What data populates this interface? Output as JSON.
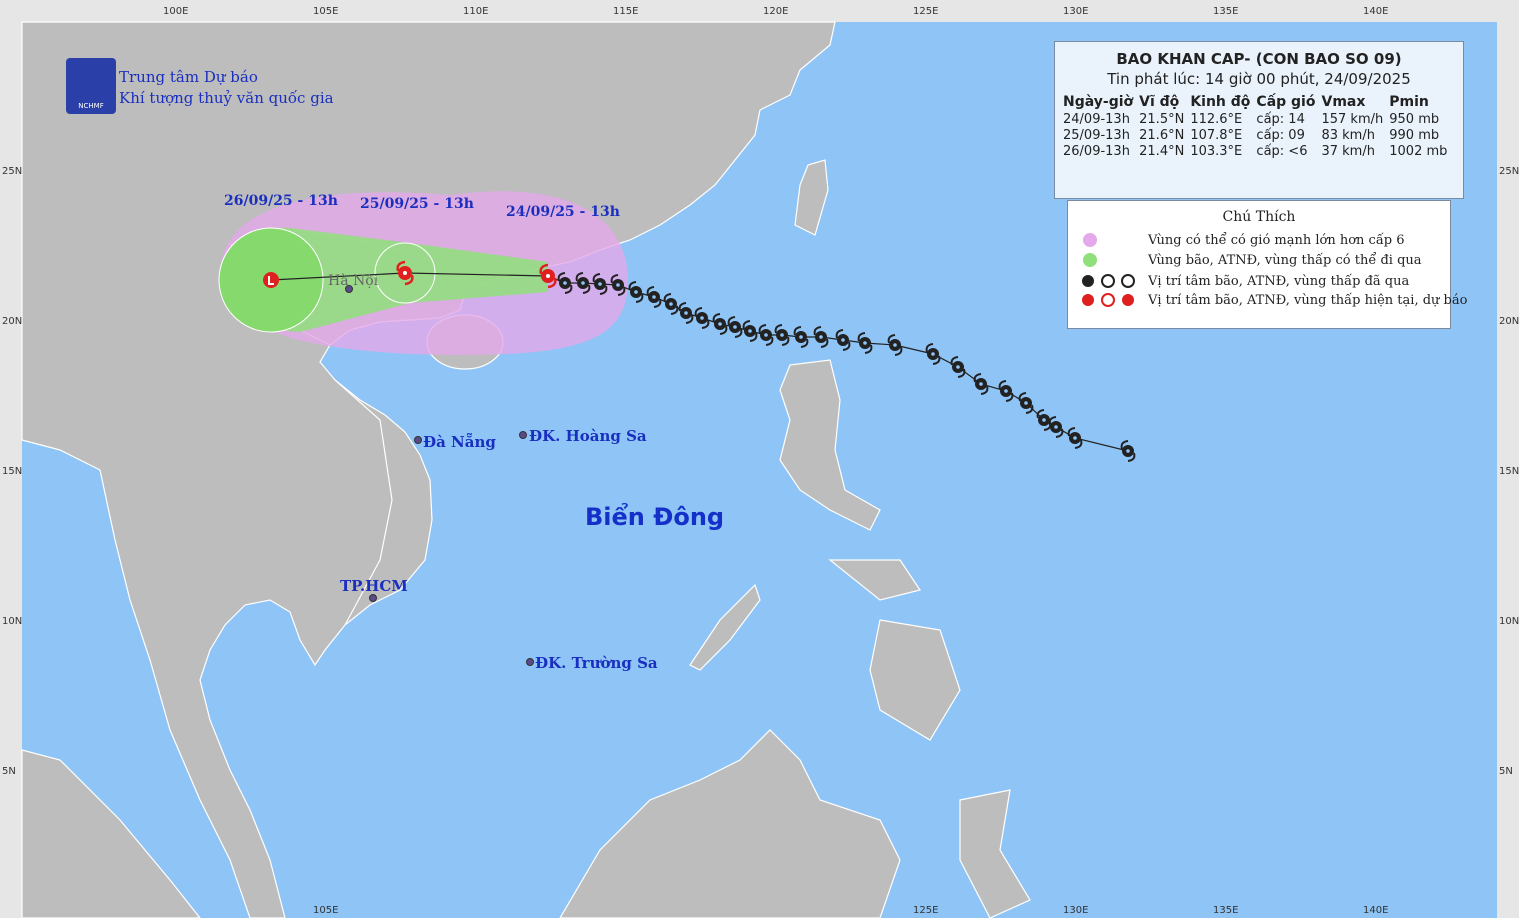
{
  "logo": {
    "abbr": "NCHMF",
    "line1": "Trung tâm Dự báo",
    "line2": "Khí tượng thuỷ văn quốc gia"
  },
  "axes": {
    "top": [
      "100E",
      "105E",
      "110E",
      "115E",
      "120E",
      "125E",
      "130E",
      "135E",
      "140E"
    ],
    "bottom": [
      "105E",
      "125E",
      "130E",
      "135E",
      "140E"
    ],
    "left": [
      "25N",
      "20N",
      "15N",
      "10N",
      "5N"
    ],
    "right": [
      "25N",
      "20N",
      "15N",
      "10N",
      "5N"
    ]
  },
  "forecast_labels": [
    "26/09/25 - 13h",
    "25/09/25 - 13h",
    "24/09/25 - 13h"
  ],
  "places": {
    "hanoi": "Hà Nội",
    "danang": "Đà Nẵng",
    "hoangsa": "ĐK. Hoàng Sa",
    "hcm": "TP.HCM",
    "truongsa": "ĐK. Trường Sa",
    "sea": "Biển Đông"
  },
  "info": {
    "title": "BAO KHAN CAP- (CON BAO SO 09)",
    "issued": "Tin phát lúc: 14 giờ 00 phút, 24/09/2025",
    "headers": [
      "Ngày-giờ",
      "Vĩ độ",
      "Kinh độ",
      "Cấp gió",
      "Vmax",
      "Pmin"
    ],
    "rows": [
      [
        "24/09-13h",
        "21.5°N",
        "112.6°E",
        "cấp: 14",
        "157 km/h",
        "950 mb"
      ],
      [
        "25/09-13h",
        "21.6°N",
        "107.8°E",
        "cấp: 09",
        "83 km/h",
        "990 mb"
      ],
      [
        "26/09-13h",
        "21.4°N",
        "103.3°E",
        "cấp: <6",
        "37 km/h",
        "1002 mb"
      ]
    ]
  },
  "legend": {
    "title": "Chú Thích",
    "items": [
      "Vùng có thể có gió mạnh lớn hơn cấp 6",
      "Vùng bão, ATNĐ, vùng thấp có thể đi qua",
      "Vị trí tâm bão, ATNĐ, vùng thấp đã qua",
      "Vị trí tâm bão, ATNĐ, vùng thấp hiện tại, dự báo"
    ]
  }
}
